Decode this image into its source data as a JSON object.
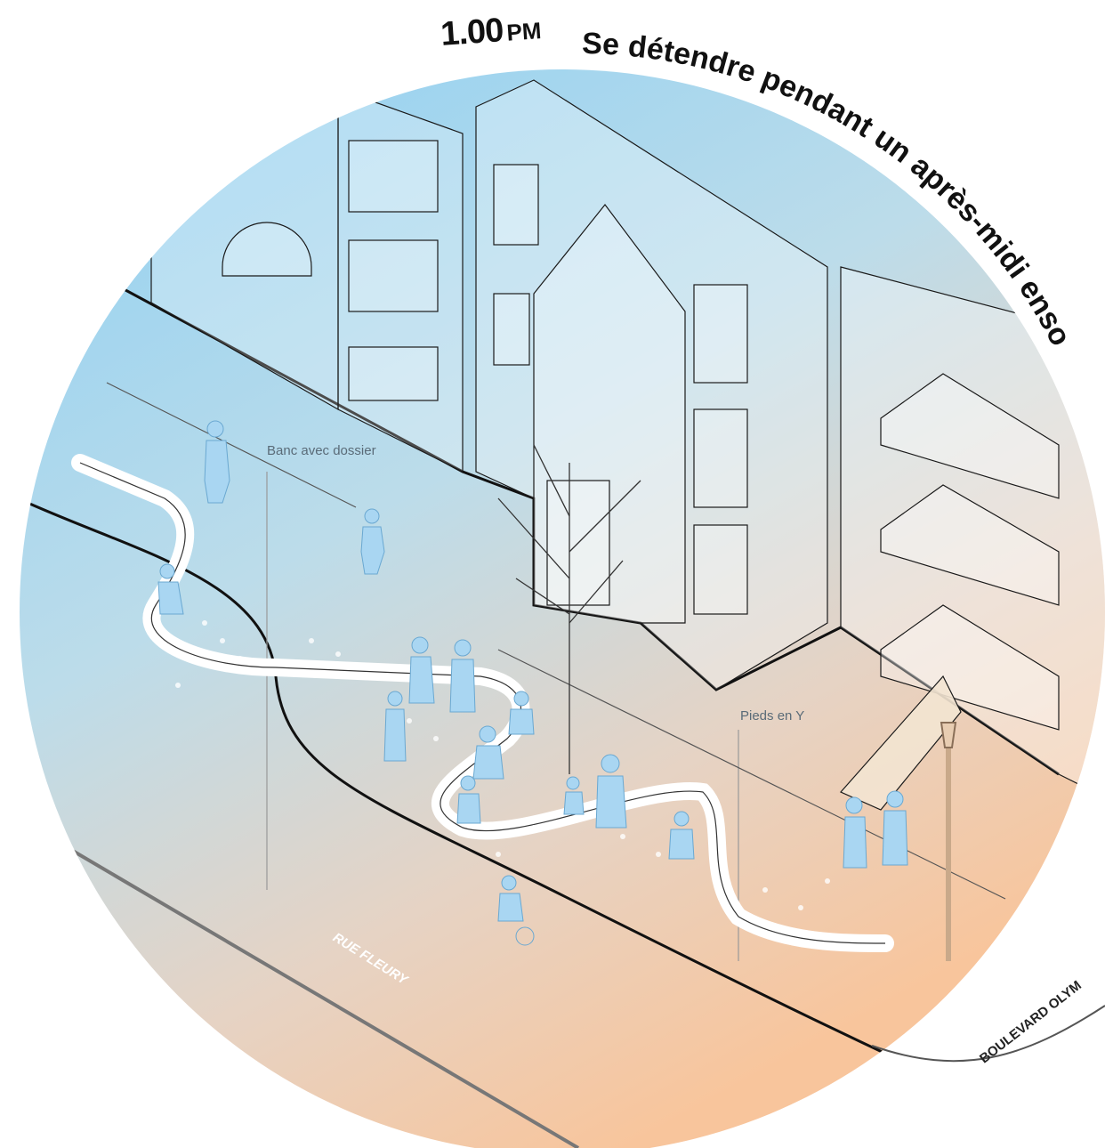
{
  "header": {
    "time": "1.00",
    "period": "PM",
    "title_arc": "Se détendre pendant un après-midi enso"
  },
  "callouts": {
    "bench_back": "Banc avec dossier",
    "y_legs": "Pieds en Y"
  },
  "streets": {
    "fleury": "RUE FLEURY",
    "olympia": "BOULEVARD OLYM"
  },
  "colors": {
    "sky_blue": "#79c9ef",
    "warm_peach": "#f8c8a0",
    "figure_blue": "#a9d6f2",
    "line": "#111111"
  }
}
